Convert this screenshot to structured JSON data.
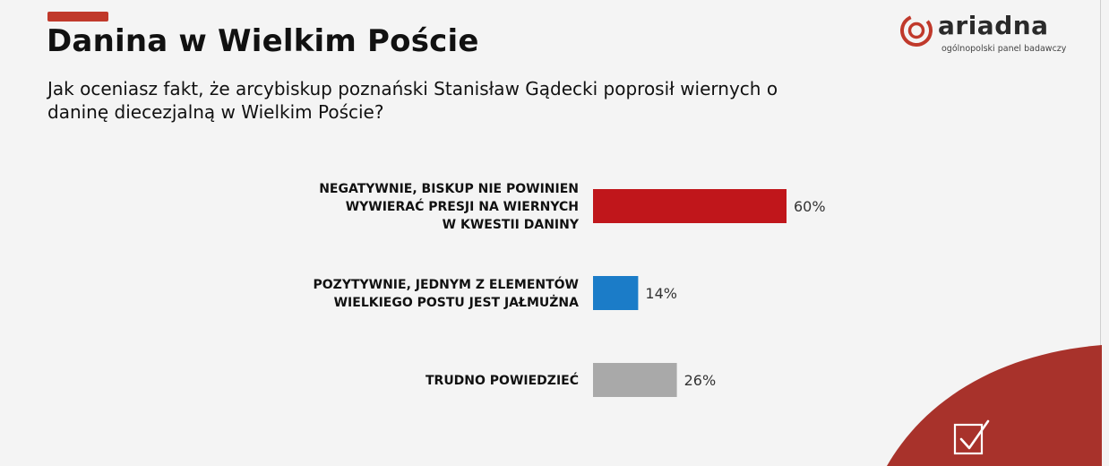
{
  "header": {
    "title": "Danina w Wielkim Poście",
    "subtitle": "Jak oceniasz fakt, że arcybiskup poznański Stanisław Gądecki poprosił wiernych o daninę diecezjalną w Wielkim Poście?"
  },
  "logo": {
    "name": "ariadna",
    "tagline": "ogólnopolski panel badawczy",
    "icon": "ariadna-logo-icon",
    "color": "#c0392b"
  },
  "corner_icon": "checkbox-check-icon",
  "colors": {
    "accent": "#c0392b",
    "bar_negative": "#c0161b",
    "bar_positive": "#1b7cc8",
    "bar_neutral": "#a9a9a9",
    "corner": "#a8322b"
  },
  "chart_data": {
    "type": "bar",
    "orientation": "horizontal",
    "categories": [
      [
        "NEGATYWNIE, BISKUP NIE POWINIEN",
        "WYWIERAĆ PRESJI NA WIERNYCH",
        "W KWESTII DANINY"
      ],
      [
        "POZYTYWNIE, JEDNYM Z ELEMENTÓW",
        "WIELKIEGO POSTU JEST JAŁMUŻNA"
      ],
      [
        "TRUDNO POWIEDZIEĆ"
      ]
    ],
    "values": [
      60,
      14,
      26
    ],
    "value_labels": [
      "60%",
      "14%",
      "26%"
    ],
    "unit": "%",
    "colors": [
      "#c0161b",
      "#1b7cc8",
      "#a9a9a9"
    ],
    "xlim": [
      0,
      100
    ],
    "grid": false,
    "legend": "none"
  }
}
